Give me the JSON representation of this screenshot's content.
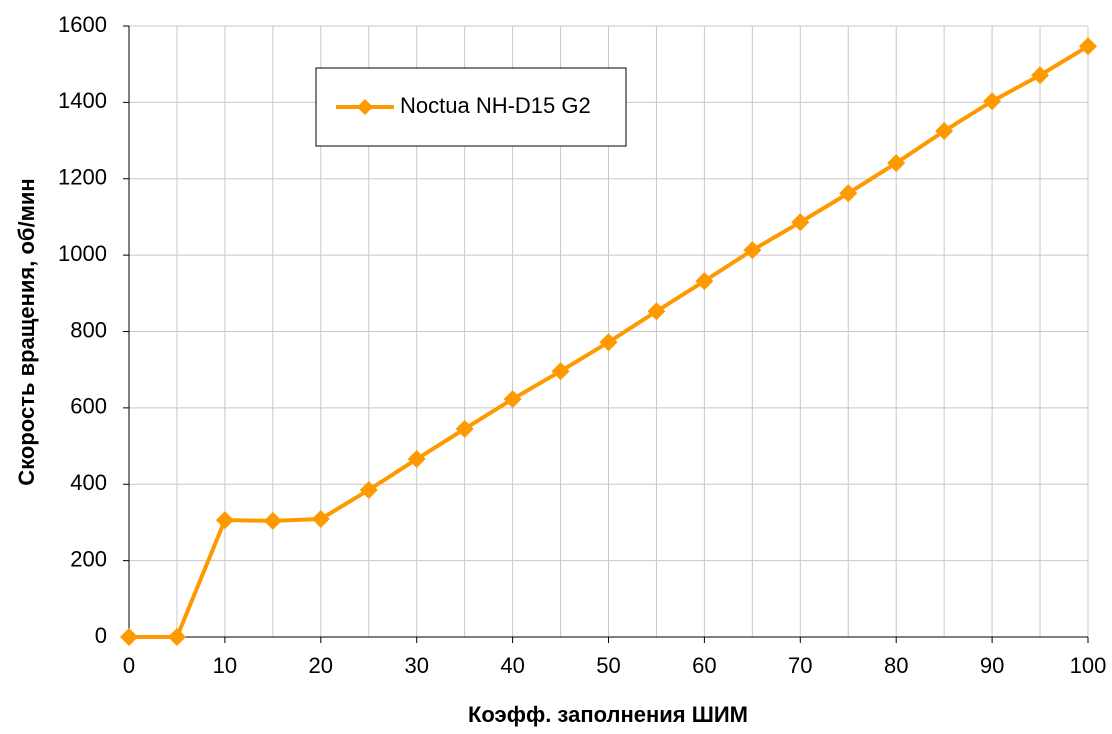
{
  "chart_data": {
    "type": "line",
    "x_label": "Коэфф. заполнения ШИМ",
    "y_label": "Скорость вращения, об/мин",
    "x": [
      0,
      5,
      10,
      15,
      20,
      25,
      30,
      35,
      40,
      45,
      50,
      55,
      60,
      65,
      70,
      75,
      80,
      85,
      90,
      95,
      100
    ],
    "series": [
      {
        "name": "Noctua NH-D15 G2",
        "color": "#ff9900",
        "values": [
          0,
          0,
          306,
          304,
          309,
          385,
          466,
          545,
          623,
          696,
          772,
          853,
          932,
          1013,
          1086,
          1162,
          1241,
          1325,
          1403,
          1471,
          1547
        ]
      }
    ],
    "xlim": [
      0,
      100
    ],
    "xticks": [
      0,
      10,
      20,
      30,
      40,
      50,
      60,
      70,
      80,
      90,
      100
    ],
    "ylim": [
      0,
      1600
    ],
    "yticks": [
      0,
      200,
      400,
      600,
      800,
      1000,
      1200,
      1400,
      1600
    ],
    "grid": true
  }
}
